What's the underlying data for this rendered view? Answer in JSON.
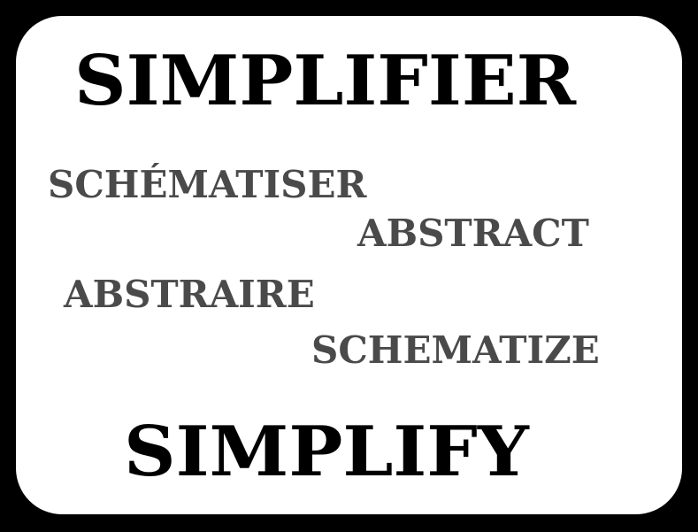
{
  "words": {
    "top": "SIMPLIFIER",
    "synonym_1": "SCHÉMATISER",
    "synonym_2": "ABSTRACT",
    "synonym_3": "ABSTRAIRE",
    "synonym_4": "SCHEMATIZE",
    "bottom": "SIMPLIFY"
  },
  "colors": {
    "frame": "#000000",
    "card": "#ffffff",
    "main_text": "#000000",
    "synonym_text": "#4a4a4a"
  }
}
